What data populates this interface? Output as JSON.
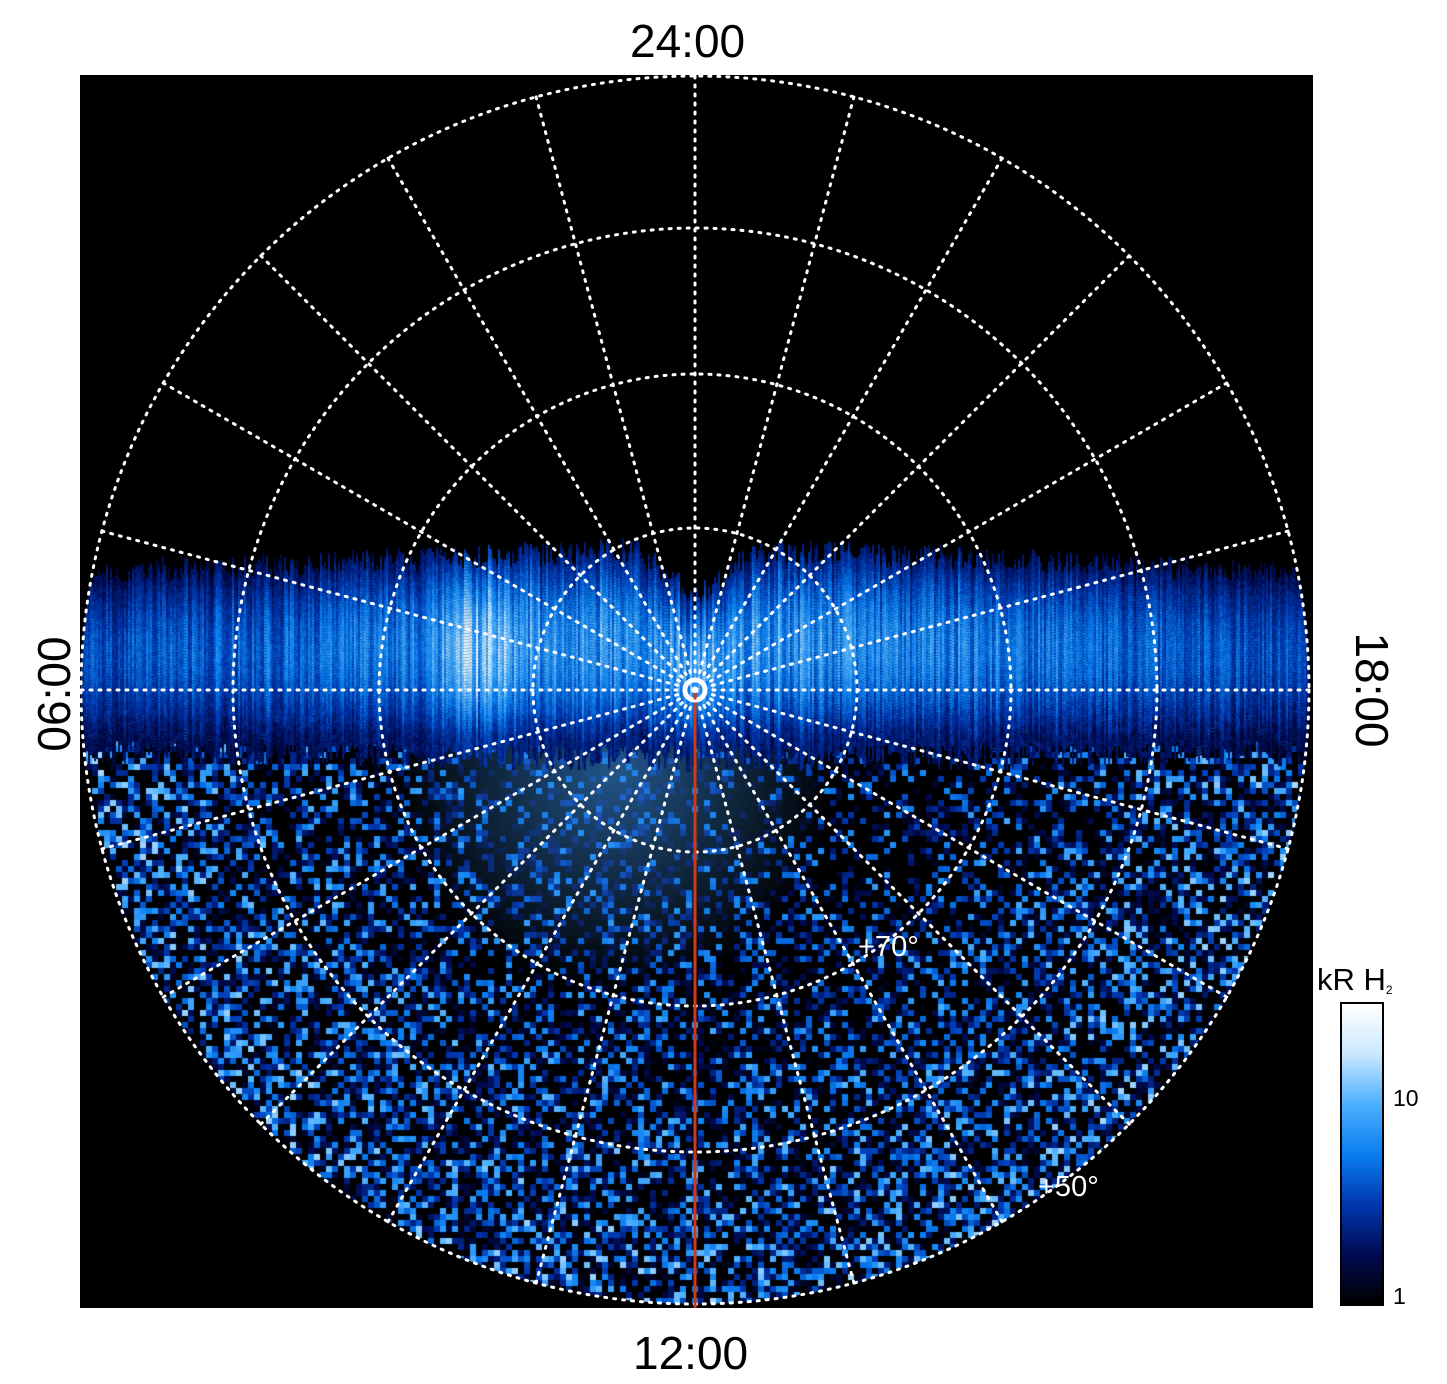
{
  "map": {
    "labels": {
      "top": "24:00",
      "bottom": "12:00",
      "left": "06:00",
      "right": "18:00"
    },
    "latitude_labels": [
      "+70°",
      "+50°"
    ],
    "colorbar": {
      "title": "kR H",
      "title_subscript": "2",
      "ticks": [
        "10",
        "1"
      ]
    },
    "colors": {
      "background": "#000000",
      "grid": "#ffffff",
      "meridian_line": "#d13a18",
      "colormap": [
        "#000000",
        "#000b52",
        "#0038b0",
        "#0a7ef0",
        "#4db0ff",
        "#c9e8ff",
        "#ffffff"
      ]
    }
  }
}
